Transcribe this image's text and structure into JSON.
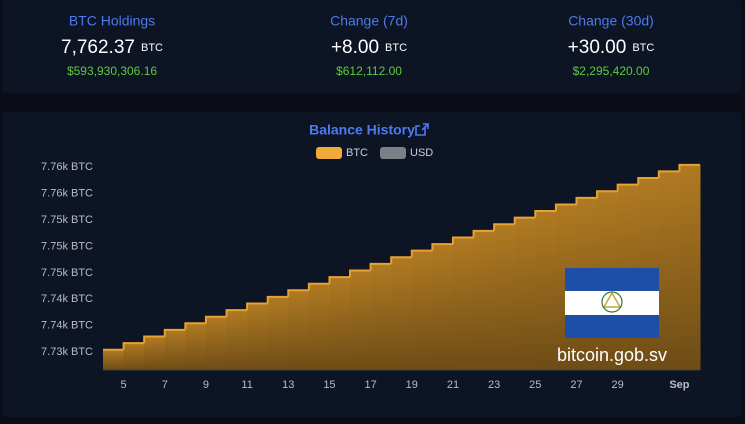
{
  "stats": [
    {
      "label": "BTC Holdings",
      "value": "7,762.37",
      "unit": "BTC",
      "usd": "$593,930,306.16"
    },
    {
      "label": "Change (7d)",
      "value": "+8.00",
      "unit": "BTC",
      "usd": "$612,112.00"
    },
    {
      "label": "Change (30d)",
      "value": "+30.00",
      "unit": "BTC",
      "usd": "$2,295,420.00"
    }
  ],
  "chart_data": {
    "type": "step-area",
    "title": "Balance History",
    "legend": [
      {
        "name": "BTC",
        "color": "#f2a93b"
      },
      {
        "name": "USD",
        "color": "#7b7f88"
      }
    ],
    "categories": [
      null,
      "5",
      null,
      "7",
      null,
      "9",
      null,
      "11",
      null,
      "13",
      null,
      "15",
      null,
      "17",
      null,
      "19",
      null,
      "21",
      null,
      "23",
      null,
      "25",
      null,
      "27",
      null,
      "29",
      null,
      null,
      "Sep"
    ],
    "series": [
      {
        "name": "BTC",
        "color": "#e6a232",
        "values": [
          7734.37,
          7735.37,
          7736.37,
          7737.37,
          7738.37,
          7739.37,
          7740.37,
          7741.37,
          7742.37,
          7743.37,
          7744.37,
          7745.37,
          7746.37,
          7747.37,
          7748.37,
          7749.37,
          7750.37,
          7751.37,
          7752.37,
          7753.37,
          7754.37,
          7755.37,
          7756.37,
          7757.37,
          7758.37,
          7759.37,
          7760.37,
          7761.37,
          7762.37
        ]
      }
    ],
    "ylim": [
      7731.3,
      7763.1
    ],
    "yticks": [
      {
        "value": 7734,
        "label": "7.73k BTC"
      },
      {
        "value": 7738,
        "label": "7.74k BTC"
      },
      {
        "value": 7742,
        "label": "7.74k BTC"
      },
      {
        "value": 7746,
        "label": "7.75k BTC"
      },
      {
        "value": 7750,
        "label": "7.75k BTC"
      },
      {
        "value": 7754,
        "label": "7.75k BTC"
      },
      {
        "value": 7758,
        "label": "7.76k BTC"
      },
      {
        "value": 7762,
        "label": "7.76k BTC"
      }
    ]
  },
  "watermark": "bitcoin.gob.sv"
}
